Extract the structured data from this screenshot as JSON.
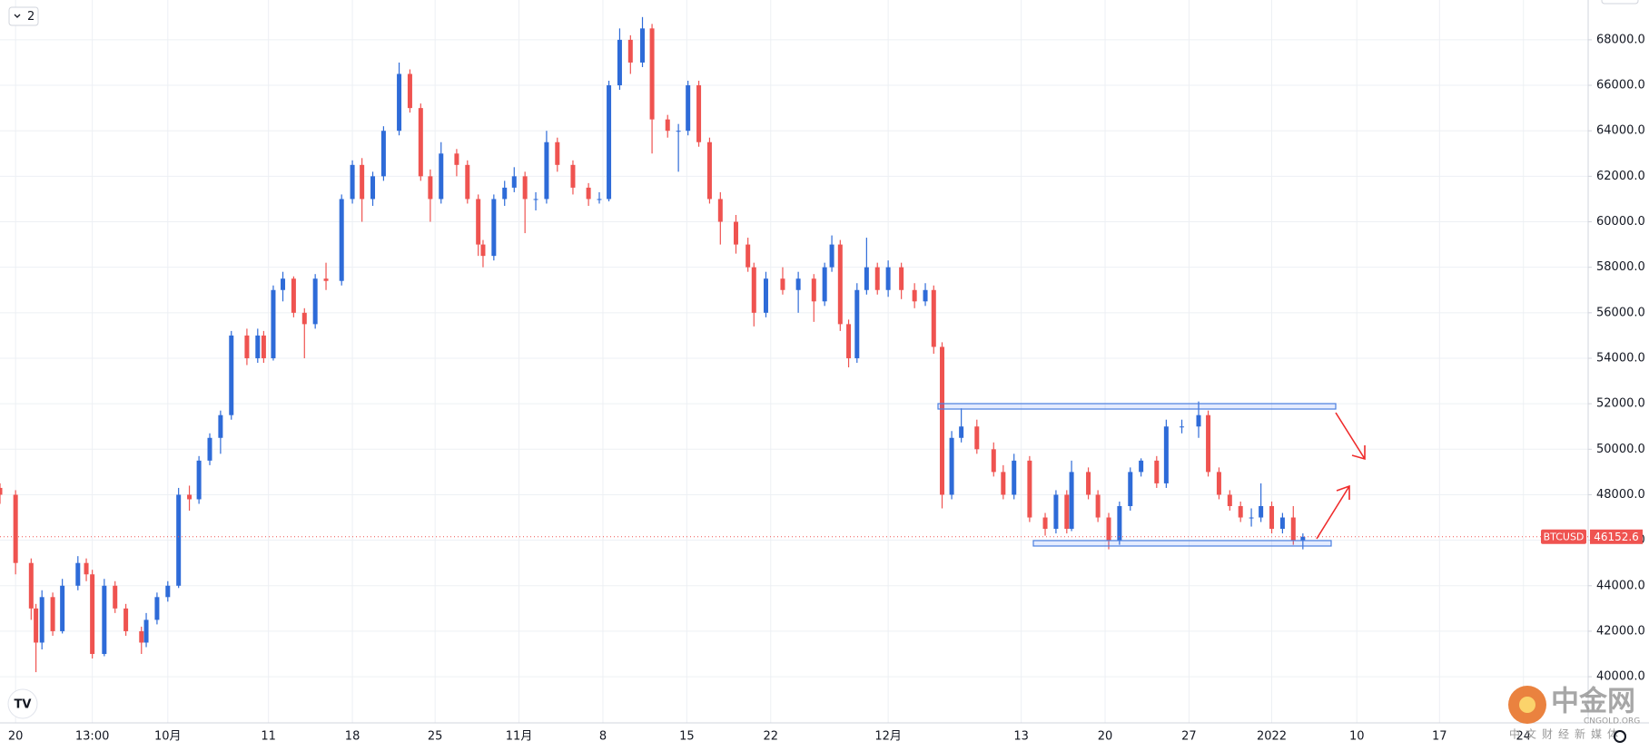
{
  "chart_data": {
    "type": "candlestick",
    "symbol": "BTCUSD",
    "last_price": 46152.6,
    "badge": "2",
    "watermark": {
      "title": "中金网",
      "domain": "CNGOLD.ORG",
      "tagline": "中文财经新媒体"
    },
    "up_color": "#2e6bd8",
    "down_color": "#ef5350",
    "grid": true,
    "xlim": [
      -14,
      118.5
    ],
    "ylim": [
      37970,
      69750
    ],
    "yticks": [
      {
        "value": 40000,
        "label": "40000.0"
      },
      {
        "value": 42000,
        "label": "42000.0"
      },
      {
        "value": 44000,
        "label": "44000.0"
      },
      {
        "value": 46000,
        "label": "46000.0"
      },
      {
        "value": 48000,
        "label": "48000.0"
      },
      {
        "value": 50000,
        "label": "50000.0"
      },
      {
        "value": 52000,
        "label": "52000.0"
      },
      {
        "value": 54000,
        "label": "54000.0"
      },
      {
        "value": 56000,
        "label": "56000.0"
      },
      {
        "value": 58000,
        "label": "58000.0"
      },
      {
        "value": 60000,
        "label": "60000.0"
      },
      {
        "value": 62000,
        "label": "62000.0"
      },
      {
        "value": 64000,
        "label": "64000.0"
      },
      {
        "value": 66000,
        "label": "66000.0"
      },
      {
        "value": 68000,
        "label": "68000.0"
      }
    ],
    "xticks": [
      {
        "value": -12.7,
        "label": "20"
      },
      {
        "value": -6.3,
        "label": "13:00"
      },
      {
        "value": 0,
        "label": "10月"
      },
      {
        "value": 8.4,
        "label": "11"
      },
      {
        "value": 15.4,
        "label": "18"
      },
      {
        "value": 22.3,
        "label": "25"
      },
      {
        "value": 29.3,
        "label": "11月"
      },
      {
        "value": 36.3,
        "label": "8"
      },
      {
        "value": 43.3,
        "label": "15"
      },
      {
        "value": 50.3,
        "label": "22"
      },
      {
        "value": 60.1,
        "label": "12月"
      },
      {
        "value": 71.2,
        "label": "13"
      },
      {
        "value": 78.2,
        "label": "20"
      },
      {
        "value": 85.2,
        "label": "27"
      },
      {
        "value": 92.1,
        "label": "2022"
      },
      {
        "value": 99.2,
        "label": "10"
      },
      {
        "value": 106.1,
        "label": "17"
      },
      {
        "value": 113.1,
        "label": "24"
      }
    ],
    "candles": [
      [
        -14.0,
        48300,
        48500,
        47600,
        48000
      ],
      [
        -12.7,
        48000,
        48200,
        44500,
        45000
      ],
      [
        -11.4,
        45000,
        45200,
        42500,
        43000
      ],
      [
        -11.0,
        43000,
        43200,
        40200,
        41500
      ],
      [
        -10.5,
        41500,
        43800,
        41200,
        43500
      ],
      [
        -9.6,
        43500,
        43700,
        41800,
        42000
      ],
      [
        -8.8,
        42000,
        44300,
        41900,
        44000
      ],
      [
        -7.5,
        44000,
        45300,
        43800,
        45000
      ],
      [
        -6.8,
        45000,
        45200,
        44200,
        44500
      ],
      [
        -6.3,
        44500,
        44700,
        40800,
        41000
      ],
      [
        -5.3,
        41000,
        44300,
        40900,
        44000
      ],
      [
        -4.4,
        44000,
        44200,
        42800,
        43000
      ],
      [
        -3.5,
        43000,
        43200,
        41800,
        42000
      ],
      [
        -2.2,
        42000,
        42200,
        41000,
        41500
      ],
      [
        -1.8,
        41500,
        42800,
        41300,
        42500
      ],
      [
        -0.9,
        42500,
        43700,
        42300,
        43500
      ],
      [
        0,
        43500,
        44200,
        43300,
        44000
      ],
      [
        0.9,
        44000,
        48300,
        43900,
        48000
      ],
      [
        1.8,
        48000,
        48400,
        47300,
        47800
      ],
      [
        2.6,
        47800,
        49700,
        47600,
        49500
      ],
      [
        3.5,
        49500,
        50700,
        49300,
        50500
      ],
      [
        4.4,
        50500,
        51700,
        49800,
        51500
      ],
      [
        5.3,
        51500,
        55200,
        51300,
        55000
      ],
      [
        6.6,
        55000,
        55300,
        53700,
        54000
      ],
      [
        7.5,
        54000,
        55300,
        53800,
        55000
      ],
      [
        8.0,
        55000,
        55200,
        53800,
        54000
      ],
      [
        8.8,
        54000,
        57200,
        53900,
        57000
      ],
      [
        9.6,
        57000,
        57800,
        56500,
        57500
      ],
      [
        10.5,
        57500,
        57600,
        55800,
        56000
      ],
      [
        11.4,
        56000,
        56200,
        54000,
        55500
      ],
      [
        12.3,
        55500,
        57700,
        55300,
        57500
      ],
      [
        13.2,
        57500,
        58200,
        57000,
        57400
      ],
      [
        14.5,
        57400,
        61200,
        57200,
        61000
      ],
      [
        15.4,
        61000,
        62700,
        60800,
        62500
      ],
      [
        16.2,
        62500,
        62800,
        60000,
        61000
      ],
      [
        17.1,
        61000,
        62200,
        60700,
        62000
      ],
      [
        18.0,
        62000,
        64200,
        61800,
        64000
      ],
      [
        19.3,
        64000,
        67000,
        63800,
        66500
      ],
      [
        20.2,
        66500,
        66700,
        64800,
        65000
      ],
      [
        21.1,
        65000,
        65200,
        61800,
        62000
      ],
      [
        21.9,
        62000,
        62300,
        60000,
        61000
      ],
      [
        22.8,
        61000,
        63500,
        60800,
        63000
      ],
      [
        24.1,
        63000,
        63200,
        62000,
        62500
      ],
      [
        25.0,
        62500,
        62700,
        60800,
        61000
      ],
      [
        25.9,
        61000,
        61200,
        58500,
        59000
      ],
      [
        26.3,
        59000,
        59200,
        58000,
        58500
      ],
      [
        27.2,
        58500,
        61200,
        58300,
        61000
      ],
      [
        28.1,
        61000,
        61800,
        60700,
        61500
      ],
      [
        28.9,
        61500,
        62400,
        61300,
        62000
      ],
      [
        29.8,
        62000,
        62200,
        59500,
        61000
      ],
      [
        30.7,
        61000,
        61300,
        60500,
        61000
      ],
      [
        31.6,
        61000,
        64000,
        60800,
        63500
      ],
      [
        32.5,
        63500,
        63700,
        62200,
        62500
      ],
      [
        33.8,
        62500,
        62700,
        61200,
        61500
      ],
      [
        35.1,
        61500,
        61700,
        60700,
        61000
      ],
      [
        36.0,
        61000,
        61300,
        60800,
        61000
      ],
      [
        36.8,
        61000,
        66200,
        60900,
        66000
      ],
      [
        37.7,
        66000,
        68500,
        65800,
        68000
      ],
      [
        38.6,
        68000,
        68200,
        66500,
        67000
      ],
      [
        39.6,
        67000,
        69000,
        66800,
        68500
      ],
      [
        40.4,
        68500,
        68700,
        63000,
        64500
      ],
      [
        41.7,
        64500,
        64700,
        63700,
        64000
      ],
      [
        42.6,
        64000,
        64300,
        62200,
        64000
      ],
      [
        43.4,
        64000,
        66200,
        63800,
        66000
      ],
      [
        44.3,
        66000,
        66200,
        63300,
        63500
      ],
      [
        45.2,
        63500,
        63700,
        60800,
        61000
      ],
      [
        46.1,
        61000,
        61300,
        59000,
        60000
      ],
      [
        47.4,
        60000,
        60300,
        58600,
        59000
      ],
      [
        48.4,
        59000,
        59300,
        57800,
        58000
      ],
      [
        48.9,
        58000,
        58200,
        55400,
        56000
      ],
      [
        49.9,
        56000,
        57800,
        55800,
        57500
      ],
      [
        51.3,
        57500,
        58000,
        56800,
        57000
      ],
      [
        52.6,
        57000,
        57800,
        56000,
        57500
      ],
      [
        53.9,
        57500,
        57700,
        55600,
        56500
      ],
      [
        54.8,
        56500,
        58200,
        56300,
        58000
      ],
      [
        55.4,
        58000,
        59400,
        57800,
        59000
      ],
      [
        56.1,
        59000,
        59200,
        55200,
        55500
      ],
      [
        56.8,
        55500,
        55700,
        53600,
        54000
      ],
      [
        57.5,
        54000,
        57300,
        53800,
        57000
      ],
      [
        58.3,
        57000,
        59300,
        56800,
        58000
      ],
      [
        59.2,
        58000,
        58200,
        56800,
        57000
      ],
      [
        60.1,
        57000,
        58300,
        56700,
        58000
      ],
      [
        61.2,
        58000,
        58200,
        56600,
        57000
      ],
      [
        62.3,
        57000,
        57300,
        56200,
        56500
      ],
      [
        63.2,
        56500,
        57300,
        56300,
        57000
      ],
      [
        63.9,
        57000,
        57200,
        54200,
        54500
      ],
      [
        64.6,
        54500,
        54700,
        47400,
        48000
      ],
      [
        65.4,
        48000,
        50800,
        47800,
        50500
      ],
      [
        66.2,
        50500,
        51800,
        50300,
        51000
      ],
      [
        67.5,
        51000,
        51300,
        49800,
        50000
      ],
      [
        68.9,
        50000,
        50300,
        48800,
        49000
      ],
      [
        69.7,
        49000,
        49300,
        47800,
        48000
      ],
      [
        70.6,
        48000,
        49800,
        47800,
        49500
      ],
      [
        71.9,
        49500,
        49700,
        46800,
        47000
      ],
      [
        73.2,
        47000,
        47200,
        46200,
        46500
      ],
      [
        74.1,
        46500,
        48200,
        46300,
        48000
      ],
      [
        75.0,
        48000,
        48200,
        46300,
        46500
      ],
      [
        75.4,
        46500,
        49500,
        46400,
        49000
      ],
      [
        76.8,
        49000,
        49200,
        47800,
        48000
      ],
      [
        77.6,
        48000,
        48200,
        46800,
        47000
      ],
      [
        78.5,
        47000,
        47200,
        45600,
        46000
      ],
      [
        79.4,
        46000,
        47700,
        45800,
        47500
      ],
      [
        80.3,
        47500,
        49200,
        47300,
        49000
      ],
      [
        81.2,
        49000,
        49600,
        48800,
        49500
      ],
      [
        82.5,
        49500,
        49700,
        48300,
        48500
      ],
      [
        83.3,
        48500,
        51300,
        48300,
        51000
      ],
      [
        84.6,
        51000,
        51300,
        50700,
        51000
      ],
      [
        86.0,
        51000,
        52100,
        50500,
        51500
      ],
      [
        86.8,
        51500,
        51700,
        48800,
        49000
      ],
      [
        87.7,
        49000,
        49200,
        47800,
        48000
      ],
      [
        88.6,
        48000,
        48200,
        47300,
        47500
      ],
      [
        89.5,
        47500,
        47700,
        46800,
        47000
      ],
      [
        90.4,
        47000,
        47400,
        46600,
        47000
      ],
      [
        91.2,
        47000,
        48500,
        46800,
        47500
      ],
      [
        92.1,
        47500,
        47700,
        46300,
        46500
      ],
      [
        93.0,
        46500,
        47200,
        46300,
        47000
      ],
      [
        93.9,
        47000,
        47500,
        45800,
        46000
      ],
      [
        94.7,
        46000,
        46300,
        45600,
        46152.6
      ]
    ]
  }
}
